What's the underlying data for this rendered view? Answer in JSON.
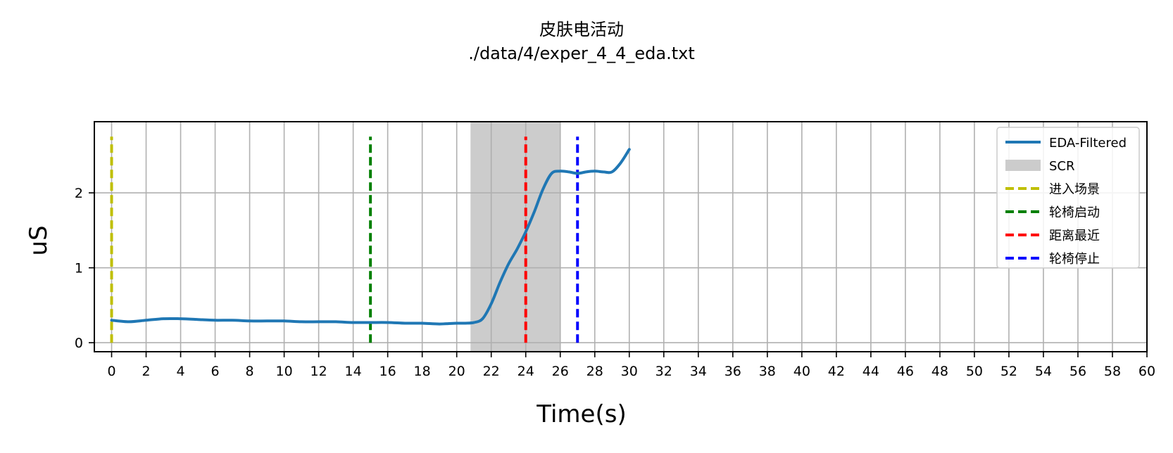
{
  "chart_data": {
    "type": "line",
    "title": "皮肤电活动",
    "subtitle": "./data/4/exper_4_4_eda.txt",
    "xlabel": "Time(s)",
    "ylabel": "uS",
    "xlim": [
      -1,
      60
    ],
    "ylim": [
      -0.12,
      2.95
    ],
    "x_ticks": [
      0,
      2,
      4,
      6,
      8,
      10,
      12,
      14,
      16,
      18,
      20,
      22,
      24,
      26,
      28,
      30,
      32,
      34,
      36,
      38,
      40,
      42,
      44,
      46,
      48,
      50,
      52,
      54,
      56,
      58,
      60
    ],
    "y_ticks": [
      0,
      1,
      2
    ],
    "grid": true,
    "legend_position": "top-right",
    "series": [
      {
        "name": "EDA-Filtered",
        "color": "#1f77b4",
        "x": [
          0,
          1,
          2,
          3,
          4,
          5,
          6,
          7,
          8,
          9,
          10,
          11,
          12,
          13,
          14,
          15,
          16,
          17,
          18,
          19,
          20,
          20.5,
          21,
          21.5,
          22,
          22.5,
          23,
          23.5,
          24,
          24.5,
          25,
          25.5,
          26,
          26.5,
          27,
          27.5,
          28,
          28.5,
          29,
          29.5,
          30
        ],
        "values": [
          0.3,
          0.28,
          0.3,
          0.32,
          0.32,
          0.31,
          0.3,
          0.3,
          0.29,
          0.29,
          0.29,
          0.28,
          0.28,
          0.28,
          0.27,
          0.27,
          0.27,
          0.26,
          0.26,
          0.25,
          0.26,
          0.26,
          0.27,
          0.32,
          0.52,
          0.8,
          1.05,
          1.25,
          1.48,
          1.75,
          2.05,
          2.26,
          2.29,
          2.28,
          2.26,
          2.28,
          2.29,
          2.28,
          2.28,
          2.4,
          2.58
        ]
      }
    ],
    "shaded_regions": [
      {
        "name": "SCR",
        "x_start": 20.8,
        "x_end": 26,
        "color": "#cccccc"
      }
    ],
    "event_lines": [
      {
        "name": "进入场景",
        "x": 0,
        "color": "#bfbf00"
      },
      {
        "name": "轮椅启动",
        "x": 15,
        "color": "#008000"
      },
      {
        "name": "距离最近",
        "x": 24,
        "color": "#ff0000"
      },
      {
        "name": "轮椅停止",
        "x": 27,
        "color": "#0000ff"
      }
    ],
    "event_line_ymax": 2.75
  }
}
